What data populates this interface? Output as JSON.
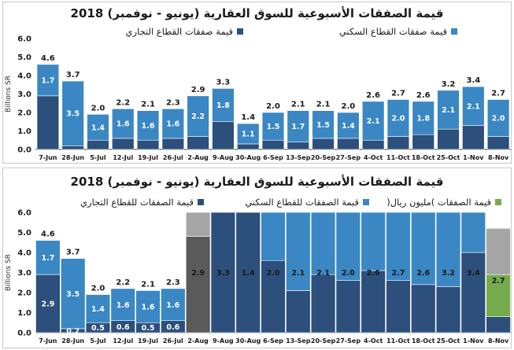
{
  "chart_data": [
    {
      "type": "bar",
      "stacked": true,
      "title": "قيمة الصفقات الأسبوعية للسوق العقارية (يونيو - نوفمبر) 2018",
      "ylabel": "Billions SR",
      "ylim": [
        0,
        6.0
      ],
      "yticks": [
        "0.0",
        "1.0",
        "2.0",
        "3.0",
        "4.0",
        "5.0",
        "6.0"
      ],
      "grid": false,
      "legend_position": "top",
      "categories": [
        "7-Jun",
        "28-Jun",
        "5-Jul",
        "12-Jul",
        "19-Jul",
        "26-Jul",
        "2-Aug",
        "9-Aug",
        "30-Aug",
        "6-Sep",
        "13-Sep",
        "20-Sep",
        "27-Sep",
        "4-Oct",
        "11-Oct",
        "18-Oct",
        "25-Oct",
        "1-Nov",
        "8-Nov"
      ],
      "series": [
        {
          "name": "قيمة صفقات القطاع التجاري",
          "color": "#2c4f7c",
          "values": [
            2.9,
            0.2,
            0.5,
            0.6,
            0.5,
            0.6,
            0.7,
            1.5,
            0.3,
            0.5,
            0.4,
            0.6,
            0.6,
            0.5,
            0.7,
            0.8,
            1.1,
            1.3,
            0.7
          ]
        },
        {
          "name": "قيمة صفقات القطاع السكني",
          "color": "#3a87c4",
          "values": [
            1.7,
            3.5,
            1.4,
            1.6,
            1.6,
            1.6,
            2.2,
            1.8,
            1.1,
            1.5,
            1.7,
            1.5,
            1.4,
            2.1,
            2.0,
            1.8,
            2.1,
            2.1,
            2.0
          ]
        }
      ],
      "data_labels": {
        "residential": [
          "1.7",
          "3.5",
          "1.4",
          "1.6",
          "1.6",
          "1.6",
          "2.2",
          "1.8",
          "1.1",
          "1.5",
          "1.7",
          "1.5",
          "1.4",
          "2.1",
          "2.0",
          "1.8",
          "2.1",
          "2.1",
          "2.0"
        ],
        "totals": [
          "4.6",
          "3.7",
          "2.0",
          "2.2",
          "2.1",
          "2.3",
          "2.9",
          "3.3",
          "1.4",
          "2.0",
          "2.1",
          "2.1",
          "2.0",
          "2.6",
          "2.7",
          "2.6",
          "3.2",
          "3.4",
          "2.7"
        ]
      },
      "colors": {
        "axis": "#333333",
        "label_dark": "#1a1a1a",
        "label_light": "#ffffff"
      }
    },
    {
      "type": "bar",
      "stacked": true,
      "title": "قيمة الصفقات الأسبوعية للسوق العقارية (يونيو - نوفمبر) 2018",
      "ylabel": "Billions SR",
      "ylim": [
        0,
        6.0
      ],
      "yticks": [
        "0.0",
        "1.0",
        "2.0",
        "3.0",
        "4.0",
        "5.0",
        "6.0"
      ],
      "grid": false,
      "legend_position": "top",
      "categories": [
        "7-Jun",
        "28-Jun",
        "5-Jul",
        "12-Jul",
        "19-Jul",
        "26-Jul",
        "2-Aug",
        "9-Aug",
        "30-Aug",
        "6-Sep",
        "13-Sep",
        "20-Sep",
        "27-Sep",
        "4-Oct",
        "11-Oct",
        "18-Oct",
        "25-Oct",
        "1-Nov",
        "8-Nov"
      ],
      "series": [
        {
          "name": "قيمة الصفقات للقطاع التجاري",
          "color": "#2c4f7c",
          "values": [
            2.9,
            0.2,
            0.5,
            0.6,
            0.5,
            0.6,
            0,
            6.0,
            6.0,
            3.6,
            2.1,
            2.9,
            2.6,
            3.1,
            2.6,
            2.4,
            2.3,
            4.0,
            0.8
          ]
        },
        {
          "name": "قيمة الصفقات للقطاع السكني",
          "color": "#3a87c4",
          "values": [
            1.7,
            3.5,
            1.4,
            1.6,
            1.6,
            1.6,
            0,
            0,
            0,
            2.4,
            3.9,
            3.1,
            3.4,
            2.9,
            3.4,
            3.6,
            3.7,
            2.0,
            0
          ]
        },
        {
          "name": "قيمة الصفقات )مليون ريال(",
          "color": "#76ab4d",
          "values": [
            0,
            0,
            0,
            0,
            0,
            0,
            0,
            0,
            0,
            0,
            0,
            0,
            0,
            0,
            0,
            0,
            0,
            0,
            2.1
          ]
        },
        {
          "name": "",
          "color": "#5a5a5a",
          "values": [
            0,
            0,
            0,
            0,
            0,
            0,
            4.8,
            0,
            0,
            0,
            0,
            0,
            0,
            0,
            0,
            0,
            0,
            0,
            0
          ]
        },
        {
          "name": "",
          "color": "#a5a5a5",
          "values": [
            0,
            0,
            0,
            0,
            0,
            0,
            1.2,
            0,
            0,
            0,
            0,
            0,
            0,
            0,
            0,
            0,
            0,
            0,
            2.3
          ]
        }
      ],
      "data_labels": {
        "commercial": [
          "2.9",
          "0.2",
          "0.5",
          "0.6",
          "0.5",
          "0.6"
        ],
        "residential": [
          "1.7",
          "3.5",
          "1.4",
          "1.6",
          "1.6",
          "1.6"
        ],
        "totals": [
          "4.6",
          "3.7",
          "2.0",
          "2.2",
          "2.1",
          "2.3"
        ],
        "inner": [
          "",
          "",
          "",
          "",
          "",
          "",
          "2.9",
          "3.3",
          "1.4",
          "2.0",
          "2.1",
          "2.1",
          "2.0",
          "2.6",
          "2.7",
          "2.6",
          "3.2",
          "3.4",
          "2.7"
        ]
      },
      "colors": {
        "axis": "#333333",
        "label_dark": "#1a1a1a",
        "label_light": "#ffffff"
      }
    }
  ]
}
